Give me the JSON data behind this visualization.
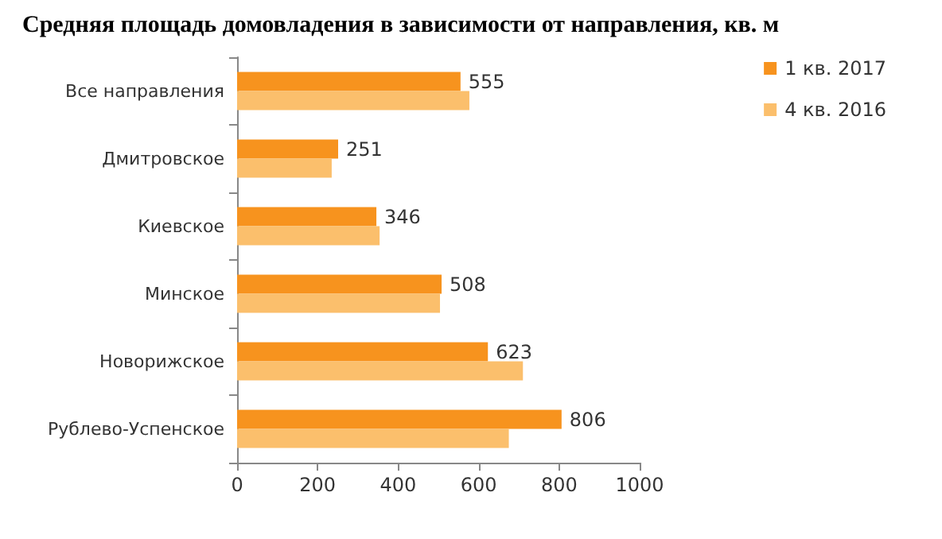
{
  "chart_data": {
    "type": "bar",
    "orientation": "horizontal",
    "title": "Средняя площадь домовладения в зависимости от направления, кв. м",
    "categories": [
      "Все направления",
      "Дмитровское",
      "Киевское",
      "Минское",
      "Новорижское",
      "Рублево-Успенское"
    ],
    "series": [
      {
        "name": "1 кв. 2017",
        "color": "#f7931e",
        "values": [
          555,
          251,
          346,
          508,
          623,
          806
        ],
        "value_labels": [
          "555",
          "251",
          "346",
          "508",
          "623",
          "806"
        ]
      },
      {
        "name": "4 кв. 2016",
        "color": "#fbbf6c",
        "values": [
          577,
          235,
          354,
          504,
          710,
          675
        ]
      }
    ],
    "xlim": [
      0,
      1000
    ],
    "xticks": [
      0,
      200,
      400,
      600,
      800,
      1000
    ],
    "legend": "top right",
    "grid": false
  }
}
